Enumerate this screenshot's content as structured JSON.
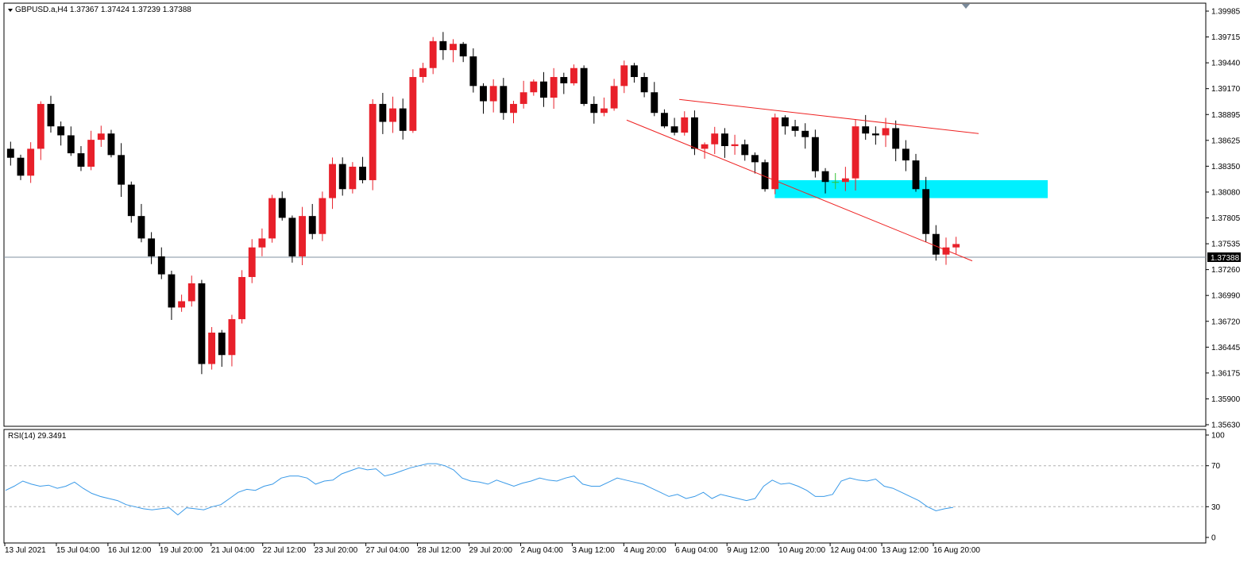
{
  "header": {
    "symbol_info": "GBPUSD.a,H4  1.37367 1.37424 1.37239 1.37388"
  },
  "rsi_header": "RSI(14) 29.3491",
  "current_price_label": "1.37388",
  "colors": {
    "bull": "#e8202a",
    "bear": "#000000",
    "doji": "#34c434",
    "trendline": "#ee2222",
    "zone": "#00f0ff",
    "rsi": "#3a9ae8",
    "price_line": "#8090a0"
  },
  "chart_data": [
    {
      "type": "candlestick",
      "symbol": "GBPUSD.a",
      "timeframe": "H4",
      "ylim": [
        1.3563,
        1.39985
      ],
      "y_ticks": [
        "1.39985",
        "1.39715",
        "1.39440",
        "1.39170",
        "1.38895",
        "1.38625",
        "1.38350",
        "1.38080",
        "1.37805",
        "1.37535",
        "1.37260",
        "1.36990",
        "1.36720",
        "1.36445",
        "1.36175",
        "1.35900",
        "1.35630"
      ],
      "x_labels": [
        "13 Jul 2021",
        "15 Jul 04:00",
        "16 Jul 12:00",
        "19 Jul 20:00",
        "21 Jul 04:00",
        "22 Jul 12:00",
        "23 Jul 20:00",
        "27 Jul 04:00",
        "28 Jul 12:00",
        "29 Jul 20:00",
        "2 Aug 04:00",
        "3 Aug 12:00",
        "4 Aug 20:00",
        "6 Aug 04:00",
        "9 Aug 12:00",
        "10 Aug 20:00",
        "12 Aug 04:00",
        "13 Aug 12:00",
        "16 Aug 20:00"
      ],
      "last_price": 1.37388,
      "price_path": [
        1.3835,
        1.3815,
        1.3845,
        1.3895,
        1.387,
        1.386,
        1.384,
        1.3825,
        1.3855,
        1.3862,
        1.3838,
        1.3805,
        1.377,
        1.3745,
        1.3725,
        1.3705,
        1.3668,
        1.3675,
        1.3695,
        1.3605,
        1.364,
        1.3615,
        1.3655,
        1.3702,
        1.3735,
        1.3745,
        1.379,
        1.3768,
        1.3725,
        1.377,
        1.375,
        1.379,
        1.3828,
        1.38,
        1.3825,
        1.381,
        1.3895,
        1.3875,
        1.389,
        1.3865,
        1.3925,
        1.3935,
        1.3965,
        1.3955,
        1.3962,
        1.3948,
        1.3915,
        1.3898,
        1.3915,
        1.3885,
        1.3895,
        1.3908,
        1.392,
        1.3902,
        1.3925,
        1.3918,
        1.3935,
        1.3895,
        1.3885,
        1.389,
        1.3915,
        1.3938,
        1.3925,
        1.3908,
        1.3885,
        1.387,
        1.3863,
        1.388,
        1.3845,
        1.385,
        1.3862,
        1.3848,
        1.385,
        1.3838,
        1.383,
        1.38,
        1.388,
        1.387,
        1.3865,
        1.3858,
        1.382,
        1.3808,
        1.3808,
        1.3812,
        1.387,
        1.3862,
        1.386,
        1.3868,
        1.3845,
        1.3832,
        1.38,
        1.375,
        1.3727,
        1.3735,
        1.37388
      ],
      "resistance_line": {
        "from": 1.39,
        "to": 1.3862
      },
      "support_line": {
        "from": 1.3877,
        "to": 1.372
      },
      "zone": {
        "low": 1.379,
        "high": 1.381
      }
    },
    {
      "type": "line",
      "name": "RSI(14)",
      "ylim": [
        0,
        100
      ],
      "y_ticks": [
        "100",
        "70",
        "30",
        "0"
      ],
      "levels": [
        70,
        30
      ],
      "last_value": 29.3491,
      "values": [
        46,
        50,
        55,
        52,
        50,
        51,
        48,
        50,
        54,
        48,
        43,
        40,
        38,
        36,
        32,
        30,
        28,
        27,
        28,
        29,
        22,
        29,
        28,
        27,
        30,
        32,
        38,
        44,
        47,
        46,
        50,
        52,
        58,
        60,
        60,
        58,
        52,
        55,
        56,
        62,
        65,
        68,
        66,
        67,
        60,
        62,
        65,
        68,
        70,
        72,
        72,
        70,
        66,
        58,
        55,
        54,
        52,
        56,
        53,
        50,
        53,
        55,
        58,
        56,
        55,
        58,
        60,
        52,
        50,
        50,
        54,
        58,
        56,
        54,
        52,
        48,
        44,
        40,
        42,
        38,
        40,
        44,
        38,
        42,
        40,
        38,
        36,
        38,
        50,
        56,
        52,
        53,
        50,
        46,
        40,
        40,
        42,
        55,
        58,
        56,
        55,
        57,
        50,
        48,
        44,
        40,
        36,
        30,
        26,
        28,
        29.35
      ]
    }
  ]
}
